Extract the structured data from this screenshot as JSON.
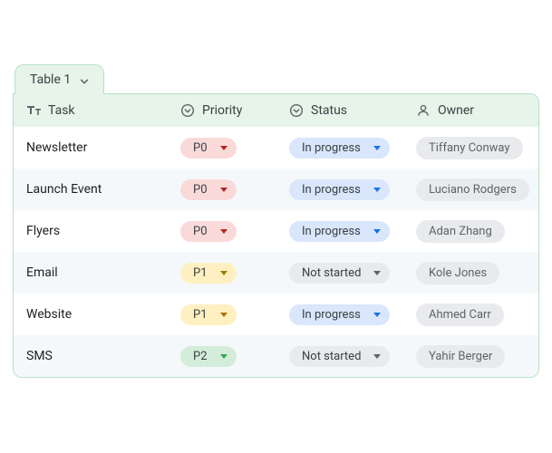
{
  "tab": {
    "label": "Table 1"
  },
  "columns": {
    "task": {
      "label": "Task"
    },
    "priority": {
      "label": "Priority"
    },
    "status": {
      "label": "Status"
    },
    "owner": {
      "label": "Owner"
    }
  },
  "priority_styles": {
    "P0": {
      "bg": "#fadad9",
      "arrow": "#b3261e"
    },
    "P1": {
      "bg": "#fff0c2",
      "arrow": "#a07800"
    },
    "P2": {
      "bg": "#d4edda",
      "arrow": "#34a853"
    }
  },
  "status_styles": {
    "In progress": {
      "bg": "#d9e6fb",
      "arrow": "#1a73e8"
    },
    "Not started": {
      "bg": "#e8eaed",
      "arrow": "#5f6368"
    }
  },
  "owner_chip": {
    "bg": "#e8eaed",
    "text": "#5f6368"
  },
  "header_bg": "#e6f4ea",
  "border_color": "#b6e0c7",
  "row_alt_bg": "#f5f8fb",
  "rows": [
    {
      "task": "Newsletter",
      "priority": "P0",
      "status": "In progress",
      "owner": "Tiffany Conway"
    },
    {
      "task": "Launch Event",
      "priority": "P0",
      "status": "In progress",
      "owner": "Luciano Rodgers"
    },
    {
      "task": "Flyers",
      "priority": "P0",
      "status": "In progress",
      "owner": "Adan Zhang"
    },
    {
      "task": "Email",
      "priority": "P1",
      "status": "Not started",
      "owner": "Kole Jones"
    },
    {
      "task": "Website",
      "priority": "P1",
      "status": "In progress",
      "owner": "Ahmed Carr"
    },
    {
      "task": "SMS",
      "priority": "P2",
      "status": "Not started",
      "owner": "Yahir Berger"
    }
  ]
}
